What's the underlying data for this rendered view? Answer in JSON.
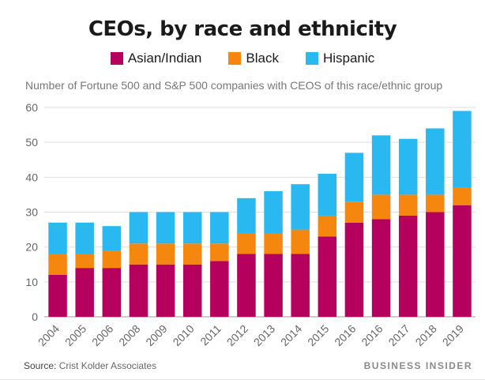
{
  "chart_data": {
    "type": "bar",
    "stacked": true,
    "title": "CEOs, by race and ethnicity",
    "subtitle": "Number of Fortune 500 and S&P 500 companies with CEOS of this race/ethnic group",
    "categories": [
      "2004",
      "2005",
      "2006",
      "2008",
      "2009",
      "2010",
      "2011",
      "2012",
      "2013",
      "2014",
      "2015",
      "2016",
      "2016",
      "2017",
      "2018",
      "2019"
    ],
    "series": [
      {
        "name": "Asian/Indian",
        "color": "#b5005e",
        "values": [
          12,
          14,
          14,
          15,
          15,
          15,
          16,
          18,
          18,
          18,
          23,
          27,
          28,
          29,
          30,
          32
        ]
      },
      {
        "name": "Black",
        "color": "#f5870f",
        "values": [
          6,
          4,
          5,
          6,
          6,
          6,
          5,
          6,
          6,
          7,
          6,
          6,
          7,
          6,
          5,
          5
        ]
      },
      {
        "name": "Hispanic",
        "color": "#2ab8f0",
        "values": [
          9,
          9,
          7,
          9,
          9,
          9,
          9,
          10,
          12,
          13,
          12,
          14,
          17,
          16,
          19,
          22
        ]
      }
    ],
    "yticks": [
      0,
      10,
      20,
      30,
      40,
      50,
      60
    ],
    "ylim": [
      0,
      60
    ],
    "grid": true,
    "legend": "top-center"
  },
  "source": {
    "label": "Source:",
    "text": "Crist Kolder Associates"
  },
  "brand": "BUSINESS INSIDER"
}
